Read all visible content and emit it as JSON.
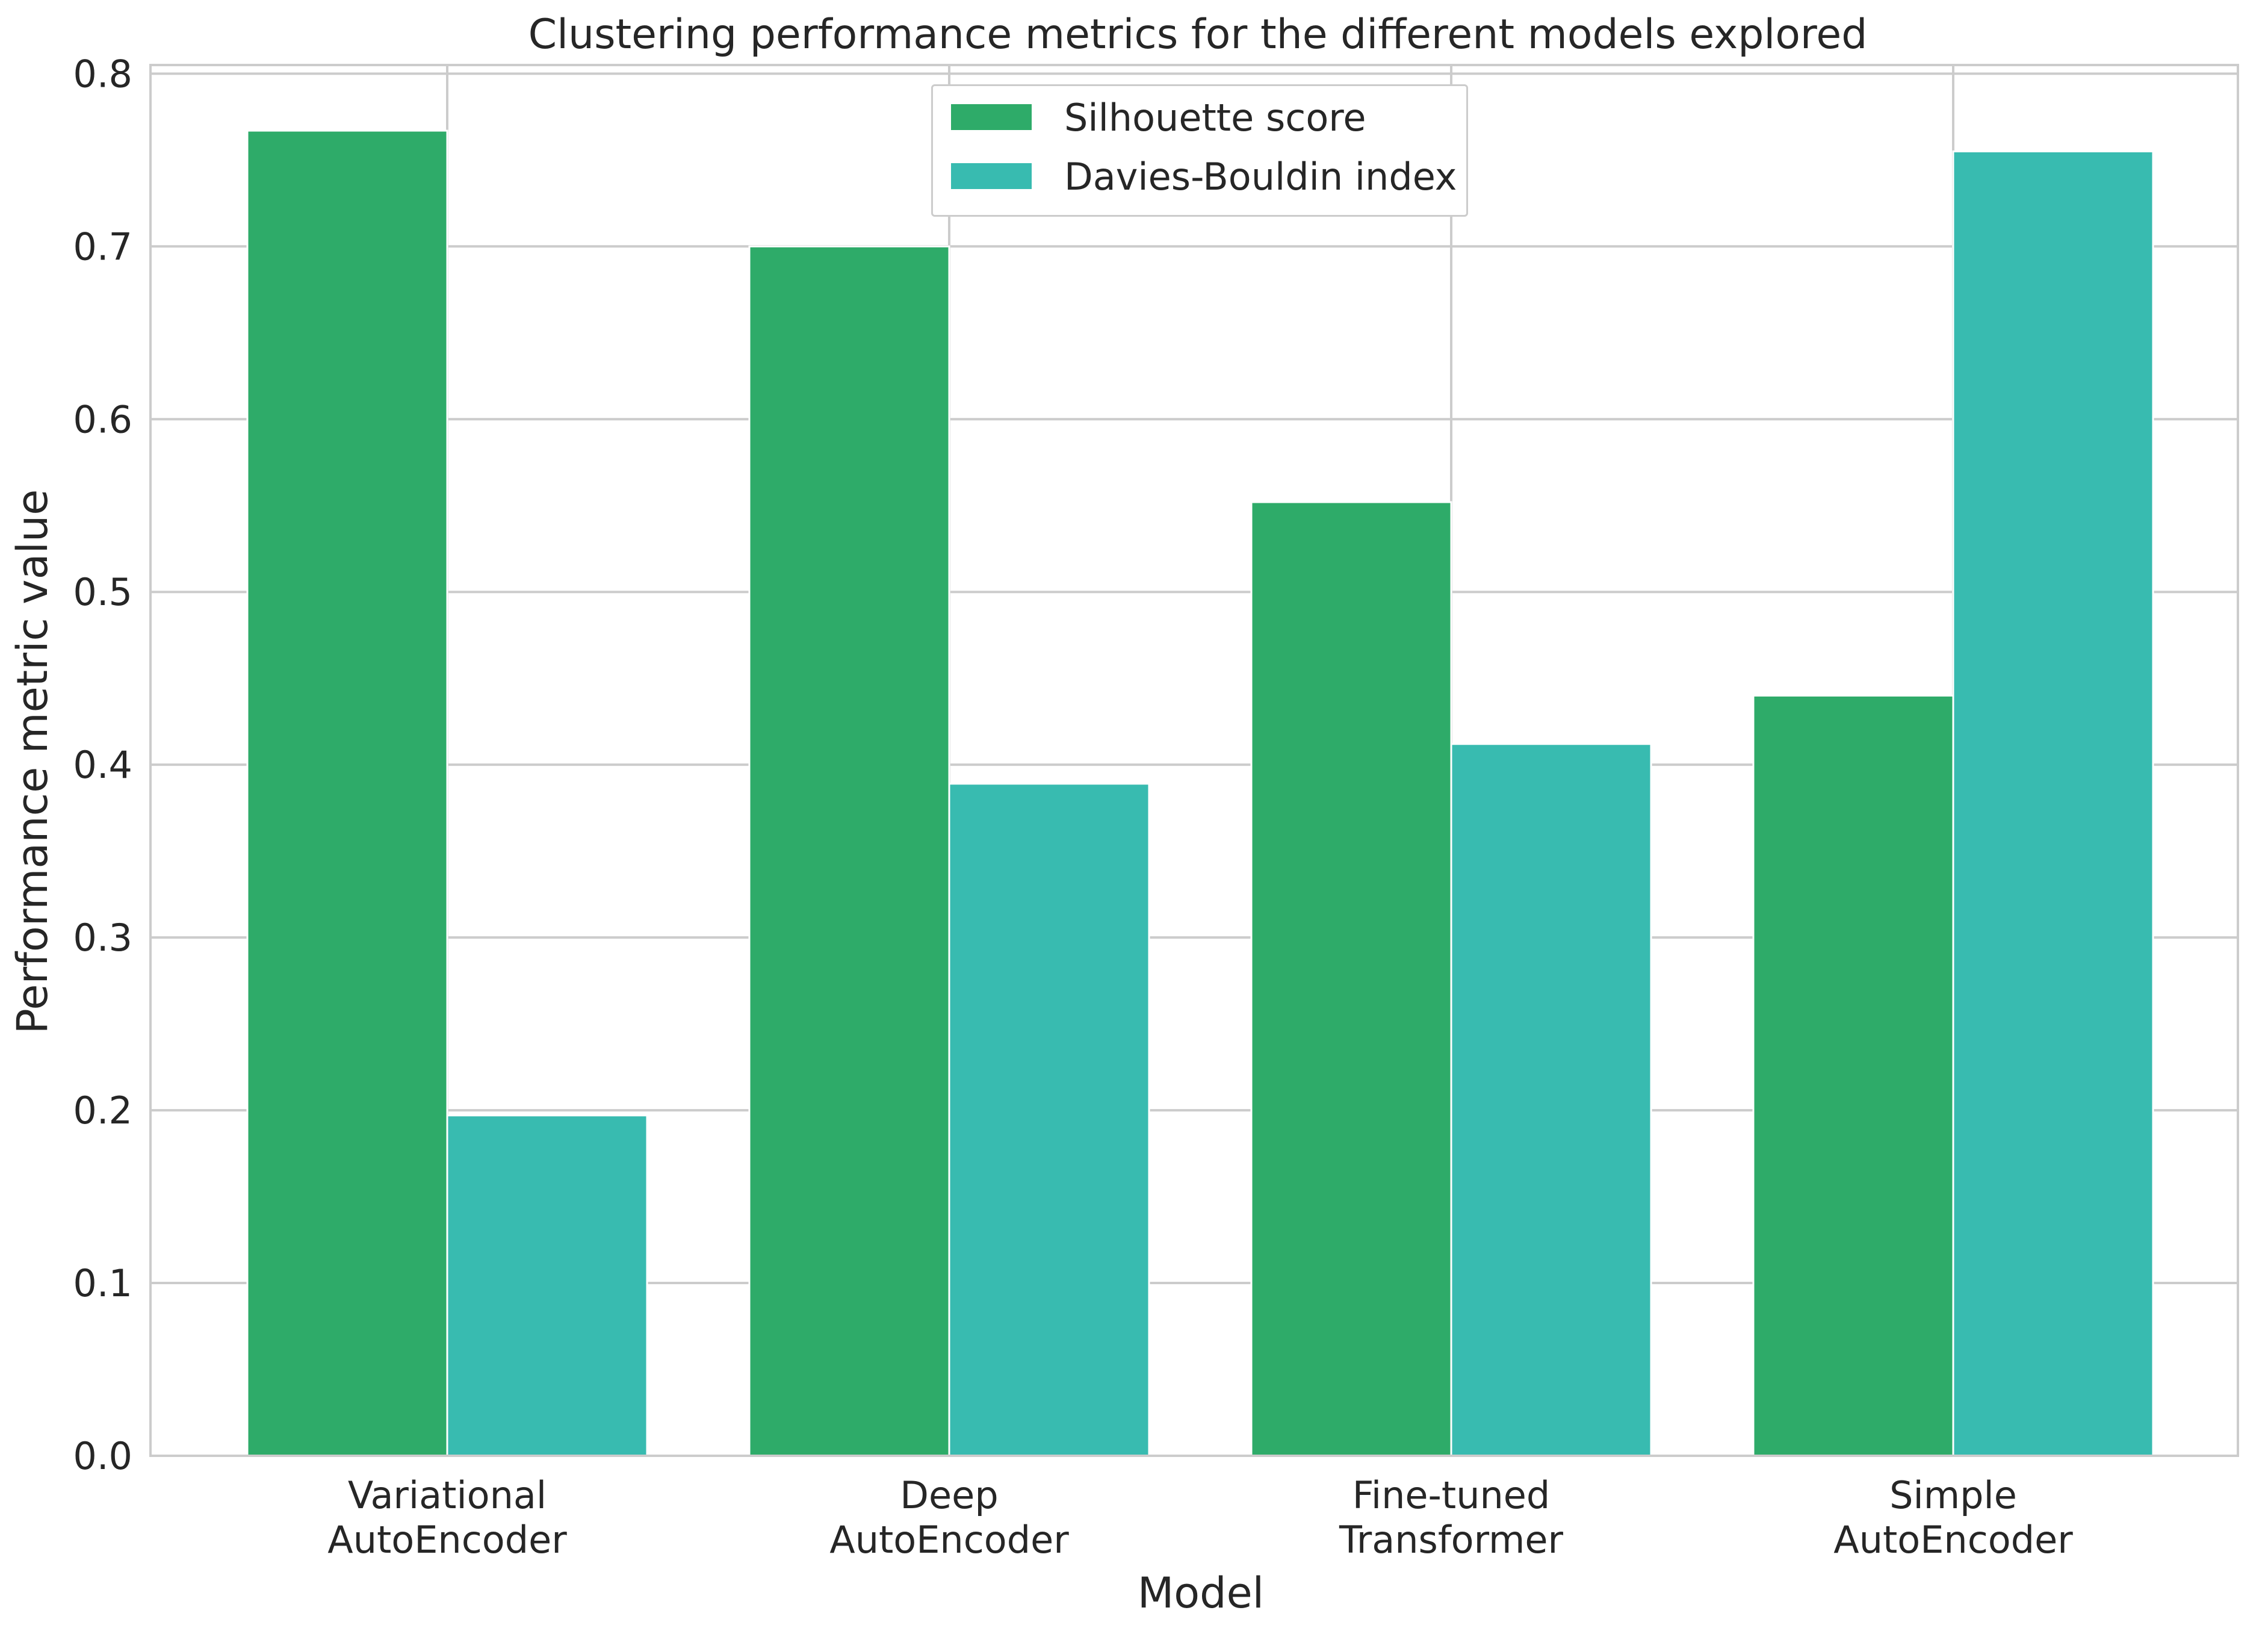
{
  "chart_data": {
    "type": "bar",
    "title": "Clustering performance metrics for the different models explored",
    "xlabel": "Model",
    "ylabel": "Performance metric value",
    "categories": [
      [
        "Variational",
        "AutoEncoder"
      ],
      [
        "Deep",
        "AutoEncoder"
      ],
      [
        "Fine-tuned",
        "Transformer"
      ],
      [
        "Simple",
        "AutoEncoder"
      ]
    ],
    "series": [
      {
        "name": "Silhouette score",
        "color": "#2eab69",
        "values": [
          0.767,
          0.7,
          0.552,
          0.44
        ]
      },
      {
        "name": "Davies-Bouldin index",
        "color": "#38bbb0",
        "values": [
          0.197,
          0.389,
          0.412,
          0.755
        ]
      }
    ],
    "ylim": [
      0,
      0.805
    ],
    "yticks": [
      0.0,
      0.1,
      0.2,
      0.3,
      0.4,
      0.5,
      0.6,
      0.7,
      0.8
    ],
    "ytick_labels": [
      "0.0",
      "0.1",
      "0.2",
      "0.3",
      "0.4",
      "0.5",
      "0.6",
      "0.7",
      "0.8"
    ],
    "grid": true,
    "legend_position": "top-center"
  }
}
